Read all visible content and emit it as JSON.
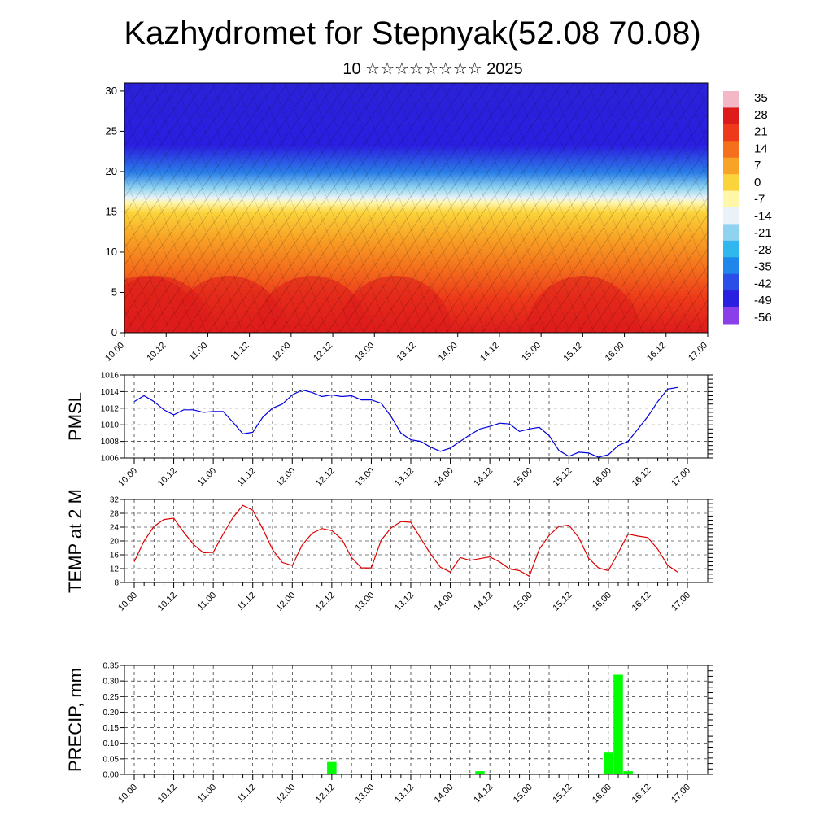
{
  "header": {
    "title": "Kazhydromet for Stepnyak(52.08 70.08)",
    "subtitle": "10 ☆☆☆☆☆☆☆☆ 2025"
  },
  "colors": {
    "pmsl_line": "#0000dd",
    "temp_line": "#dd0000",
    "precip_bar": "#00ff00"
  },
  "time_labels": [
    "10.00",
    "10.12",
    "11.00",
    "11.12",
    "12.00",
    "12.12",
    "13.00",
    "13.12",
    "14.00",
    "14.12",
    "15.00",
    "15.12",
    "16.00",
    "16.12",
    "17.00"
  ],
  "chart_data": [
    {
      "type": "heatmap",
      "name": "Vertical cross-section",
      "x_ticks": [
        "10.00",
        "10.12",
        "11.00",
        "11.12",
        "12.00",
        "12.12",
        "13.00",
        "13.12",
        "14.00",
        "14.12",
        "15.00",
        "15.12",
        "16.00",
        "16.12",
        "17.00"
      ],
      "y_ticks": [
        0,
        5,
        10,
        15,
        20,
        25,
        30
      ],
      "ylim": [
        0,
        31
      ],
      "colorbar": {
        "labels": [
          35,
          28,
          21,
          14,
          7,
          0,
          -7,
          -14,
          -21,
          -28,
          -35,
          -42,
          -49,
          -56
        ],
        "colors": [
          "#f2b8c6",
          "#dd1b1b",
          "#ee3a1a",
          "#f4701c",
          "#f8a325",
          "#fbd33a",
          "#fff6a8",
          "#e8f2f8",
          "#8fd3f0",
          "#2fb7ee",
          "#1f86ec",
          "#2b4fe6",
          "#2a1ee0",
          "#8a3fe8"
        ]
      },
      "surface_temp_by_time": [
        {
          "t": 0,
          "v": 14
        },
        {
          "t": 6,
          "v": 24
        },
        {
          "t": 9,
          "v": 26
        },
        {
          "t": 15,
          "v": 17
        },
        {
          "t": 18,
          "v": 16
        },
        {
          "t": 30,
          "v": 30
        },
        {
          "t": 39,
          "v": 14
        },
        {
          "t": 42,
          "v": 13
        },
        {
          "t": 54,
          "v": 23
        },
        {
          "t": 63,
          "v": 12
        },
        {
          "t": 78,
          "v": 25
        },
        {
          "t": 93,
          "v": 11
        },
        {
          "t": 102,
          "v": 15
        },
        {
          "t": 111,
          "v": 11
        },
        {
          "t": 120,
          "v": 10
        },
        {
          "t": 132,
          "v": 25
        },
        {
          "t": 141,
          "v": 12
        },
        {
          "t": 144,
          "v": 12
        },
        {
          "t": 153,
          "v": 21
        },
        {
          "t": 168,
          "v": 10
        }
      ]
    },
    {
      "type": "line",
      "name": "PMSL",
      "ylabel": "PMSL",
      "x_ticks": [
        "10.00",
        "10.12",
        "11.00",
        "11.12",
        "12.00",
        "12.12",
        "13.00",
        "13.12",
        "14.00",
        "14.12",
        "15.00",
        "15.12",
        "16.00",
        "16.12",
        "17.00"
      ],
      "y_ticks": [
        1006,
        1008,
        1010,
        1012,
        1014,
        1016
      ],
      "ylim": [
        1006,
        1016
      ],
      "x": [
        0,
        3,
        6,
        9,
        12,
        15,
        18,
        21,
        24,
        27,
        30,
        33,
        36,
        39,
        42,
        45,
        48,
        51,
        54,
        57,
        60,
        63,
        66,
        69,
        72,
        75,
        78,
        81,
        84,
        87,
        90,
        93,
        96,
        99,
        102,
        105,
        108,
        111,
        114,
        117,
        120,
        123,
        126,
        129,
        132,
        135,
        138,
        141,
        144,
        147,
        150,
        153,
        156,
        159,
        162,
        165
      ],
      "y": [
        1012.8,
        1013.5,
        1012.8,
        1011.8,
        1011.2,
        1011.8,
        1011.8,
        1011.5,
        1011.6,
        1011.6,
        1010.3,
        1008.9,
        1009.1,
        1010.9,
        1012.0,
        1012.5,
        1013.6,
        1014.2,
        1013.9,
        1013.4,
        1013.6,
        1013.4,
        1013.5,
        1013.0,
        1013.0,
        1012.6,
        1011.0,
        1009.0,
        1008.2,
        1008.0,
        1007.3,
        1006.8,
        1007.2,
        1008.0,
        1008.8,
        1009.5,
        1009.8,
        1010.2,
        1010.1,
        1009.2,
        1009.5,
        1009.7,
        1008.7,
        1006.9,
        1006.2,
        1006.7,
        1006.6,
        1006.1,
        1006.4,
        1007.5,
        1008.0,
        1009.5,
        1011.0,
        1012.8,
        1014.3,
        1014.5
      ]
    },
    {
      "type": "line",
      "name": "TEMP at 2 M",
      "ylabel": "TEMP at 2 M",
      "x_ticks": [
        "10.00",
        "10.12",
        "11.00",
        "11.12",
        "12.00",
        "12.12",
        "13.00",
        "13.12",
        "14.00",
        "14.12",
        "15.00",
        "15.12",
        "16.00",
        "16.12",
        "17.00"
      ],
      "y_ticks": [
        8,
        12,
        16,
        20,
        24,
        28,
        32
      ],
      "ylim": [
        8,
        32
      ],
      "x": [
        0,
        3,
        6,
        9,
        12,
        15,
        18,
        21,
        24,
        27,
        30,
        33,
        36,
        39,
        42,
        45,
        48,
        51,
        54,
        57,
        60,
        63,
        66,
        69,
        72,
        75,
        78,
        81,
        84,
        87,
        90,
        93,
        96,
        99,
        102,
        105,
        108,
        111,
        114,
        117,
        120,
        123,
        126,
        129,
        132,
        135,
        138,
        141,
        144,
        147,
        150,
        153,
        156,
        159,
        162,
        165
      ],
      "y": [
        14,
        20,
        24.2,
        26.2,
        26.6,
        22.6,
        19,
        16.6,
        16.7,
        22,
        26.8,
        30.3,
        28.9,
        23.6,
        17.5,
        13.8,
        12.9,
        18.8,
        22.2,
        23.6,
        23,
        20.6,
        15.2,
        12.2,
        12.2,
        20.2,
        23.8,
        25.6,
        25.4,
        20.8,
        16.2,
        12.4,
        11,
        15.2,
        14.4,
        14.9,
        15.4,
        13.9,
        11.9,
        11.4,
        9.8,
        17.6,
        21.6,
        24.2,
        24.6,
        21,
        15,
        12.2,
        11.4,
        16.6,
        22,
        21.4,
        21,
        17.6,
        13,
        11
      ]
    },
    {
      "type": "bar",
      "name": "PRECIP, mm",
      "ylabel": "PRECIP, mm",
      "x_ticks": [
        "10.00",
        "10.12",
        "11.00",
        "11.12",
        "12.00",
        "12.12",
        "13.00",
        "13.12",
        "14.00",
        "14.12",
        "15.00",
        "15.12",
        "16.00",
        "16.12",
        "17.00"
      ],
      "y_ticks": [
        "0.00",
        "0.05",
        "0.10",
        "0.15",
        "0.20",
        "0.25",
        "0.30",
        "0.35"
      ],
      "ylim": [
        0,
        0.35
      ],
      "bars": [
        {
          "t": 60,
          "value": 0.04
        },
        {
          "t": 105,
          "value": 0.01
        },
        {
          "t": 144,
          "value": 0.07
        },
        {
          "t": 147,
          "value": 0.32
        },
        {
          "t": 150,
          "value": 0.01
        }
      ]
    }
  ]
}
